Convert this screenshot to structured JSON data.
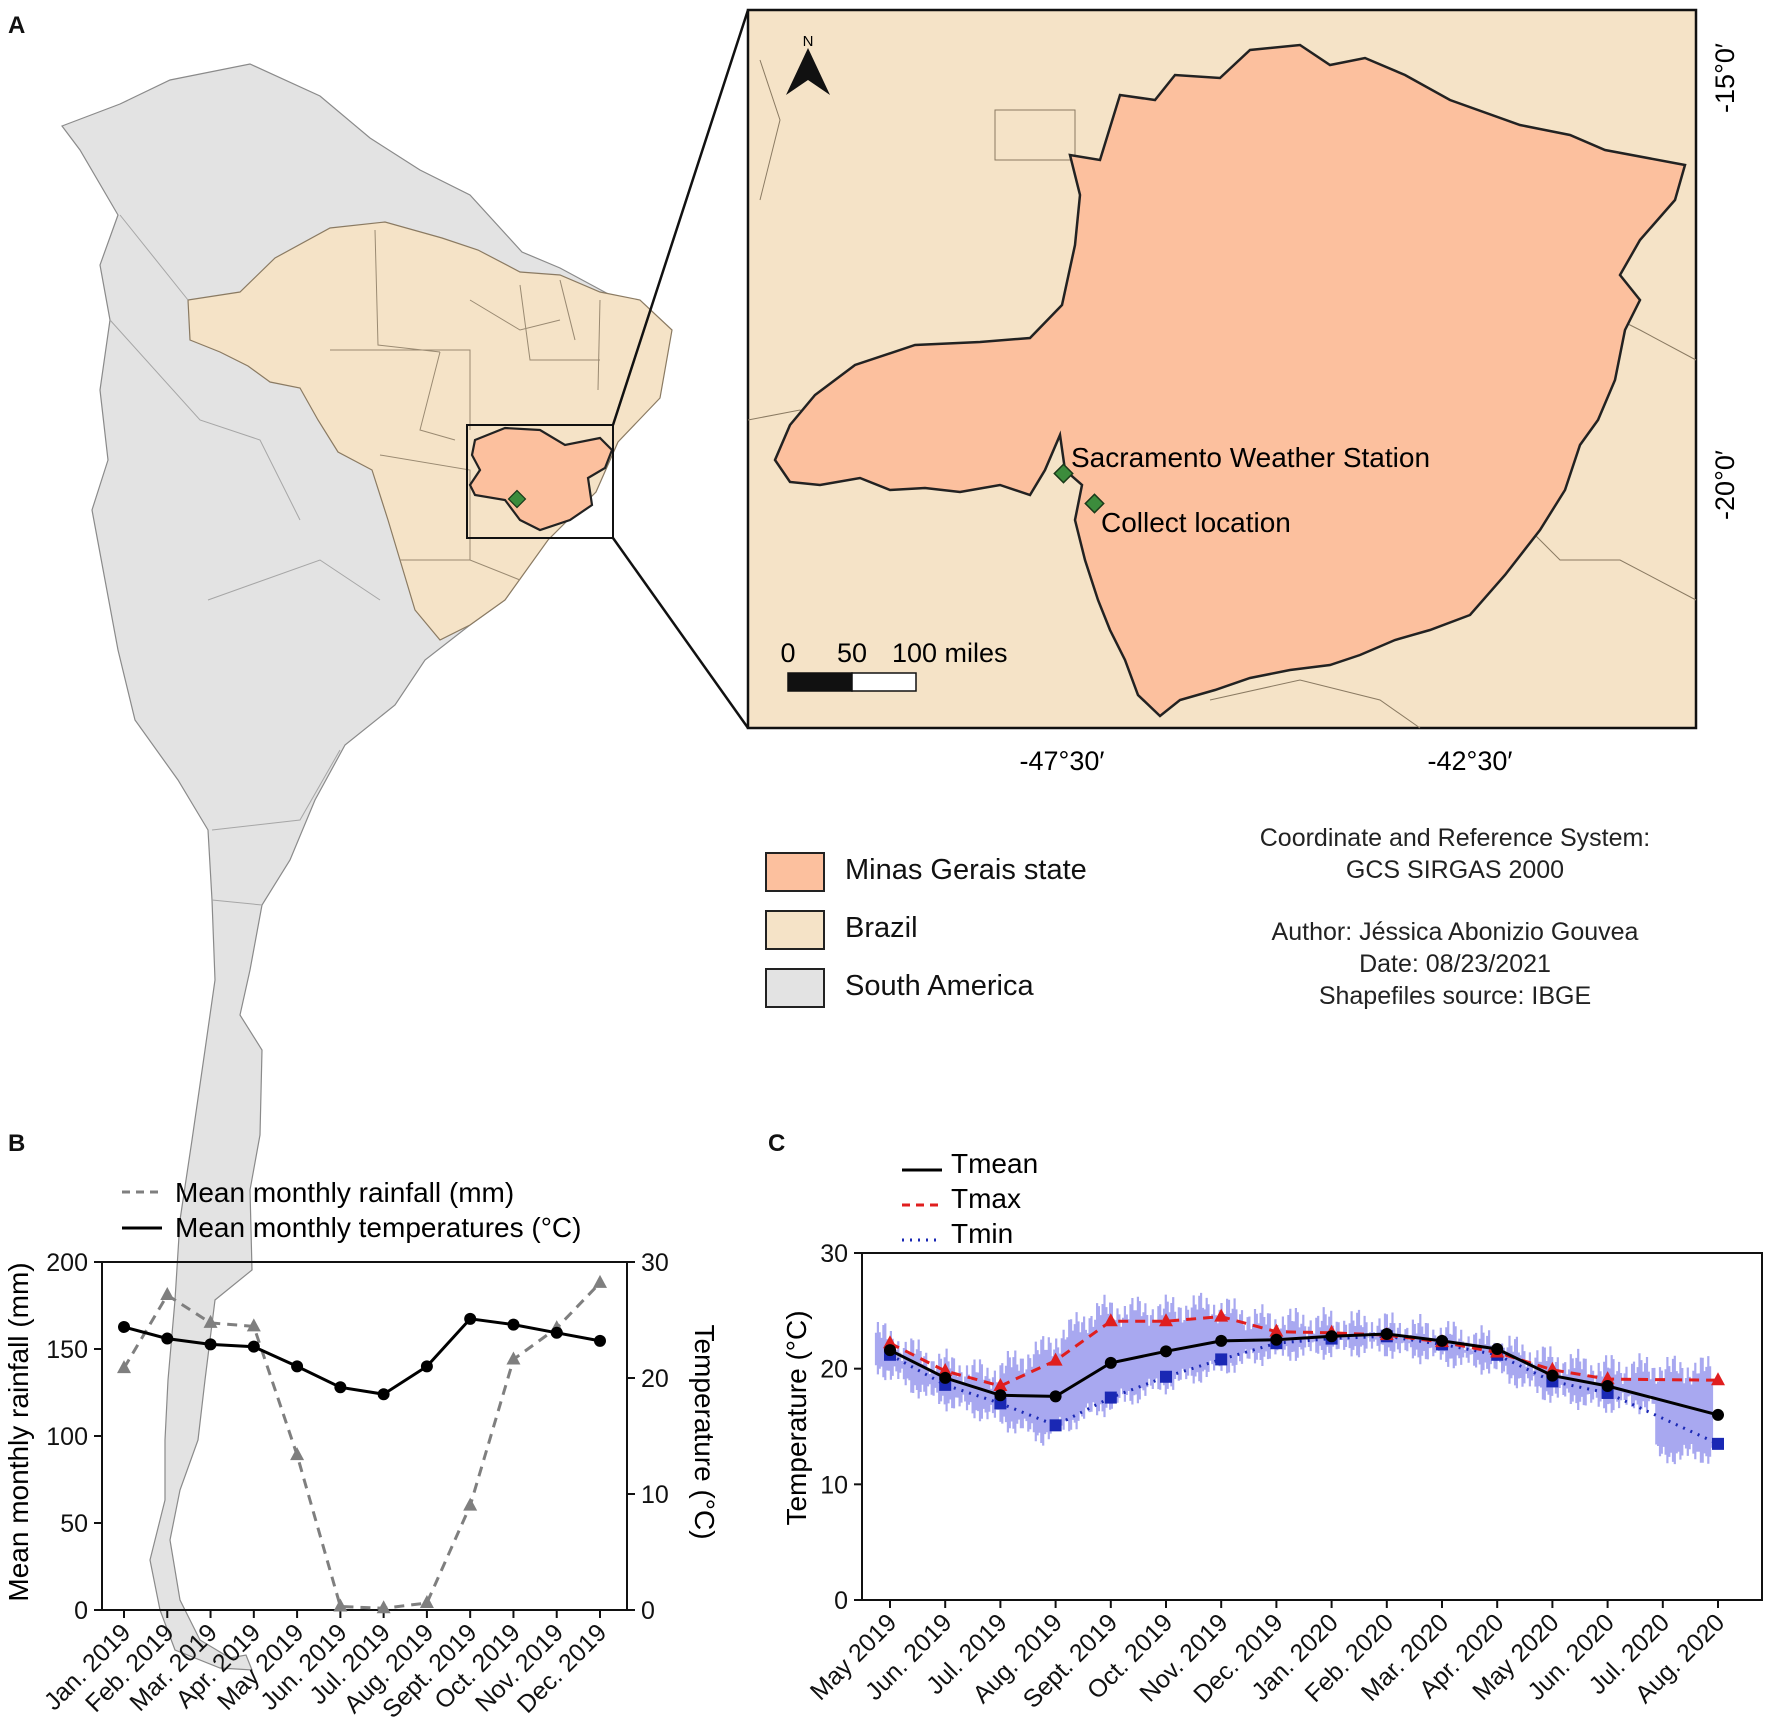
{
  "panels": {
    "a": "A",
    "b": "B",
    "c": "C"
  },
  "colors": {
    "minas": "#fcc09e",
    "brazil": "#f5e3c7",
    "south_america": "#e3e3e3",
    "marker": "#3c8c3c",
    "tmax": "#e01e1e",
    "tmin": "#1a28b4",
    "tmean": "#000000",
    "rain": "#7f7f7f",
    "daily_band": "#a8a8f0"
  },
  "map": {
    "north_label": "N",
    "sacramento_label": "Sacramento Weather Station",
    "collect_label": "Collect location",
    "scale_labels": [
      "0",
      "50",
      "100 miles"
    ],
    "lon_labels": [
      "-47°30′",
      "-42°30′"
    ],
    "lat_labels": [
      "-15°0′",
      "-20°0′"
    ]
  },
  "map_legend": [
    {
      "label": "Minas Gerais state",
      "color": "#fcc09e"
    },
    {
      "label": "Brazil",
      "color": "#f5e3c7"
    },
    {
      "label": "South America",
      "color": "#e3e3e3"
    }
  ],
  "info": {
    "crs_title": "Coordinate and Reference System:",
    "crs_value": "GCS SIRGAS 2000",
    "author": "Author: Jéssica Abonizio Gouvea",
    "date": "Date: 08/23/2021",
    "source": "Shapefiles source: IBGE"
  },
  "chart_data": [
    {
      "type": "line",
      "panel": "B",
      "categories": [
        "Jan. 2019",
        "Feb. 2019",
        "Mar. 2019",
        "Apr. 2019",
        "May 2019",
        "Jun. 2019",
        "Jul. 2019",
        "Aug. 2019",
        "Sept. 2019",
        "Oct. 2019",
        "Nov. 2019",
        "Dec. 2019"
      ],
      "series": [
        {
          "name": "Mean monthly rainfall (mm)",
          "axis": "left",
          "style": "dashed",
          "marker": "triangle",
          "values": [
            139,
            181,
            165,
            163,
            89,
            2,
            1,
            4,
            60,
            144,
            162,
            188
          ]
        },
        {
          "name": "Mean monthly temperatures (°C)",
          "axis": "right",
          "style": "solid",
          "marker": "circle",
          "values": [
            24.4,
            23.4,
            22.9,
            22.7,
            21.0,
            19.2,
            18.6,
            21.0,
            25.1,
            24.6,
            23.9,
            23.2
          ]
        }
      ],
      "ylabel": "Mean monthly rainfall (mm)",
      "ylabel_right": "Temperature (°C)",
      "ylim": [
        0,
        200
      ],
      "ylim_right": [
        0,
        30
      ],
      "yticks": [
        "0",
        "50",
        "100",
        "150",
        "200"
      ],
      "yticks_right": [
        "0",
        "10",
        "20",
        "30"
      ],
      "legend_position": "top"
    },
    {
      "type": "line",
      "panel": "C",
      "categories": [
        "May 2019",
        "Jun. 2019",
        "Jul. 2019",
        "Aug. 2019",
        "Sept. 2019",
        "Oct. 2019",
        "Nov. 2019",
        "Dec. 2019",
        "Jan. 2020",
        "Feb. 2020",
        "Mar. 2020",
        "Apr. 2020",
        "May 2020",
        "Jun. 2020",
        "Jul. 2020",
        "Aug. 2020"
      ],
      "series": [
        {
          "name": "Tmean",
          "style": "solid",
          "marker": "circle",
          "values": [
            21.6,
            19.2,
            17.7,
            17.6,
            20.5,
            21.5,
            22.4,
            22.5,
            22.8,
            23.0,
            22.4,
            21.7,
            19.4,
            18.5,
            null,
            16.0
          ]
        },
        {
          "name": "Tmax",
          "style": "dashed",
          "marker": "triangle",
          "values": [
            22.2,
            19.8,
            18.5,
            20.7,
            24.1,
            24.1,
            24.5,
            23.2,
            23.1,
            22.9,
            22.3,
            21.4,
            19.9,
            19.1,
            null,
            19.0
          ]
        },
        {
          "name": "Tmin",
          "style": "dotted",
          "marker": "square",
          "values": [
            21.2,
            18.6,
            17.0,
            15.1,
            17.5,
            19.3,
            20.8,
            22.2,
            22.6,
            22.8,
            22.1,
            21.2,
            18.9,
            17.9,
            null,
            13.5
          ]
        }
      ],
      "ylabel": "Temperature (°C)",
      "ylim": [
        0,
        30
      ],
      "yticks": [
        "0",
        "10",
        "20",
        "30"
      ],
      "legend_position": "top-left"
    }
  ]
}
